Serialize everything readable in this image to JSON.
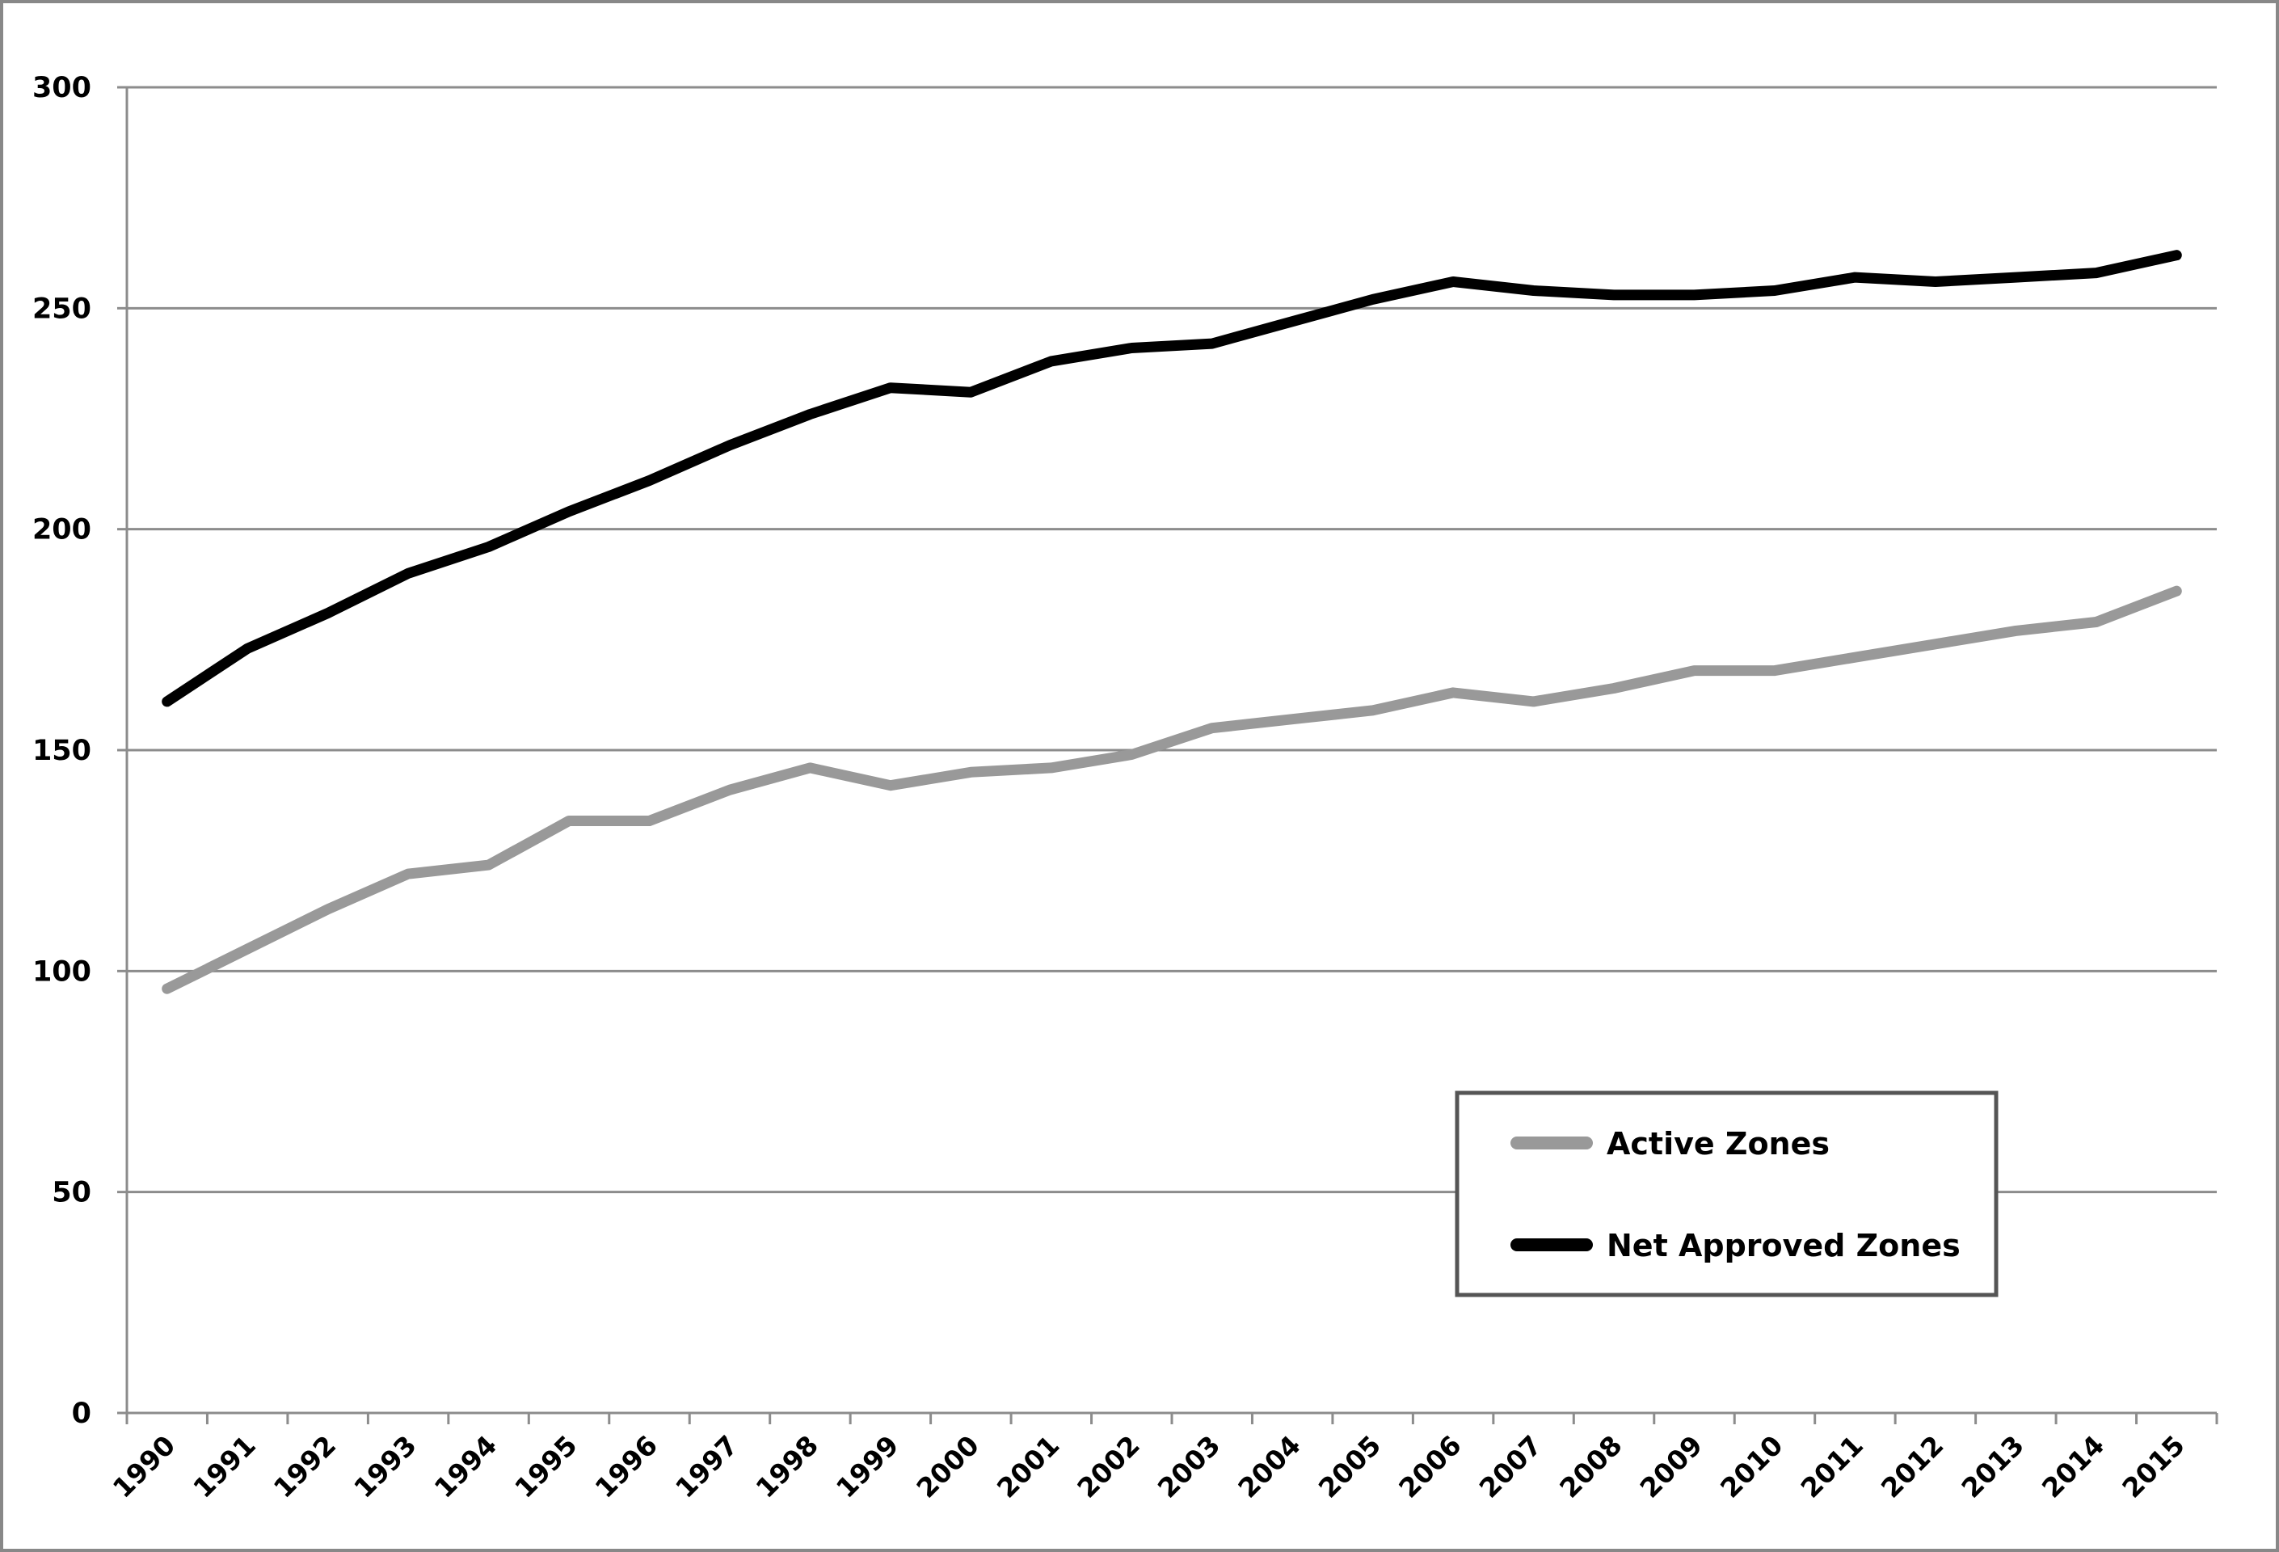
{
  "chart_data": {
    "type": "line",
    "title": "",
    "xlabel": "",
    "ylabel": "",
    "ylim": [
      0,
      300
    ],
    "yticks": [
      0,
      50,
      100,
      150,
      200,
      250,
      300
    ],
    "grid": "horizontal",
    "legend_position": "bottom-right",
    "categories": [
      "1990",
      "1991",
      "1992",
      "1993",
      "1994",
      "1995",
      "1996",
      "1997",
      "1998",
      "1999",
      "2000",
      "2001",
      "2002",
      "2003",
      "2004",
      "2005",
      "2006",
      "2007",
      "2008",
      "2009",
      "2010",
      "2011",
      "2012",
      "2013",
      "2014",
      "2015"
    ],
    "series": [
      {
        "name": "Active Zones",
        "color": "#999999",
        "values": [
          96,
          105,
          114,
          122,
          124,
          134,
          134,
          141,
          146,
          142,
          145,
          146,
          149,
          155,
          157,
          159,
          163,
          161,
          164,
          168,
          168,
          171,
          174,
          177,
          179,
          186
        ]
      },
      {
        "name": "Net Approved Zones",
        "color": "#000000",
        "values": [
          161,
          173,
          181,
          190,
          196,
          204,
          211,
          219,
          226,
          232,
          231,
          238,
          241,
          242,
          247,
          252,
          256,
          254,
          253,
          253,
          254,
          257,
          256,
          257,
          258,
          262
        ]
      }
    ]
  }
}
